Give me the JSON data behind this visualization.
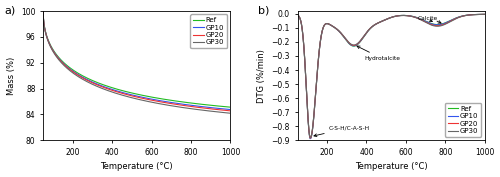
{
  "tg": {
    "colors": {
      "Ref": "#22bb22",
      "GP10": "#3355ee",
      "GP20": "#ee3333",
      "GP30": "#666666"
    },
    "ylabel": "Mass (%)",
    "xlabel": "Temperature (°C)",
    "xlim": [
      50,
      1000
    ],
    "ylim": [
      80,
      100
    ],
    "yticks": [
      80,
      84,
      88,
      92,
      96,
      100
    ],
    "xticks": [
      200,
      400,
      600,
      800,
      1000
    ]
  },
  "dtg": {
    "colors": {
      "Ref": "#22bb22",
      "GP10": "#3355ee",
      "GP20": "#ee3333",
      "GP30": "#666666"
    },
    "ylabel": "DTG (%/min)",
    "xlabel": "Temperature (°C)",
    "xlim": [
      50,
      1000
    ],
    "ylim": [
      -0.9,
      0.02
    ],
    "yticks": [
      0.0,
      -0.1,
      -0.2,
      -0.3,
      -0.4,
      -0.5,
      -0.6,
      -0.7,
      -0.8,
      -0.9
    ],
    "xticks": [
      200,
      400,
      600,
      800,
      1000
    ]
  },
  "label_a": "a)",
  "label_b": "b)"
}
